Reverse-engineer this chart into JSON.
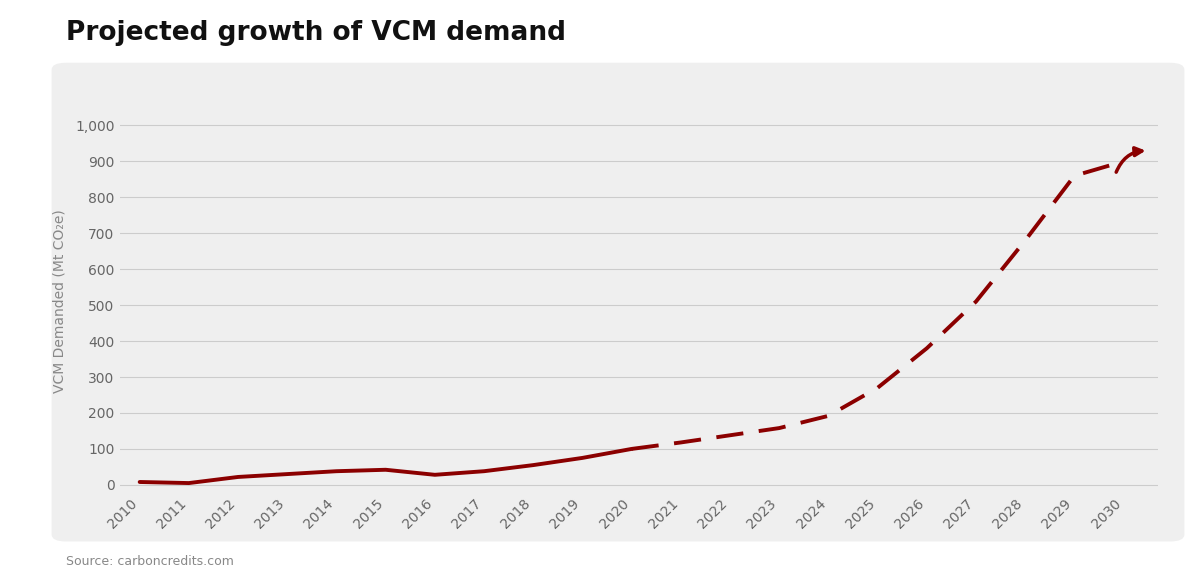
{
  "title": "Projected growth of VCM demand",
  "ylabel": "VCM Demanded (Mt CO₂e)",
  "source": "Source: carboncredits.com",
  "line_color": "#8B0000",
  "panel_color": "#EFEFEF",
  "outer_background": "#FFFFFF",
  "years_solid": [
    2010,
    2011,
    2012,
    2013,
    2014,
    2015,
    2016,
    2017,
    2018,
    2019,
    2020
  ],
  "values_solid": [
    8,
    5,
    22,
    30,
    38,
    42,
    28,
    38,
    55,
    75,
    100
  ],
  "years_dashed": [
    2020,
    2021,
    2022,
    2023,
    2024,
    2025,
    2026,
    2027,
    2028,
    2029,
    2030
  ],
  "values_dashed": [
    100,
    118,
    138,
    158,
    192,
    270,
    380,
    510,
    680,
    860,
    900
  ],
  "yticks": [
    0,
    100,
    200,
    300,
    400,
    500,
    600,
    700,
    800,
    900,
    1000
  ],
  "ylim": [
    -25,
    1050
  ],
  "xlim": [
    2009.6,
    2030.7
  ],
  "xtick_years": [
    2010,
    2011,
    2012,
    2013,
    2014,
    2015,
    2016,
    2017,
    2018,
    2019,
    2020,
    2021,
    2022,
    2023,
    2024,
    2025,
    2026,
    2027,
    2028,
    2029,
    2030
  ],
  "linewidth": 2.8,
  "title_fontsize": 19,
  "tick_fontsize": 10,
  "ylabel_fontsize": 10,
  "source_fontsize": 9,
  "grid_color": "#CCCCCC",
  "tick_color": "#666666",
  "ylabel_color": "#888888",
  "source_color": "#888888",
  "title_color": "#111111"
}
